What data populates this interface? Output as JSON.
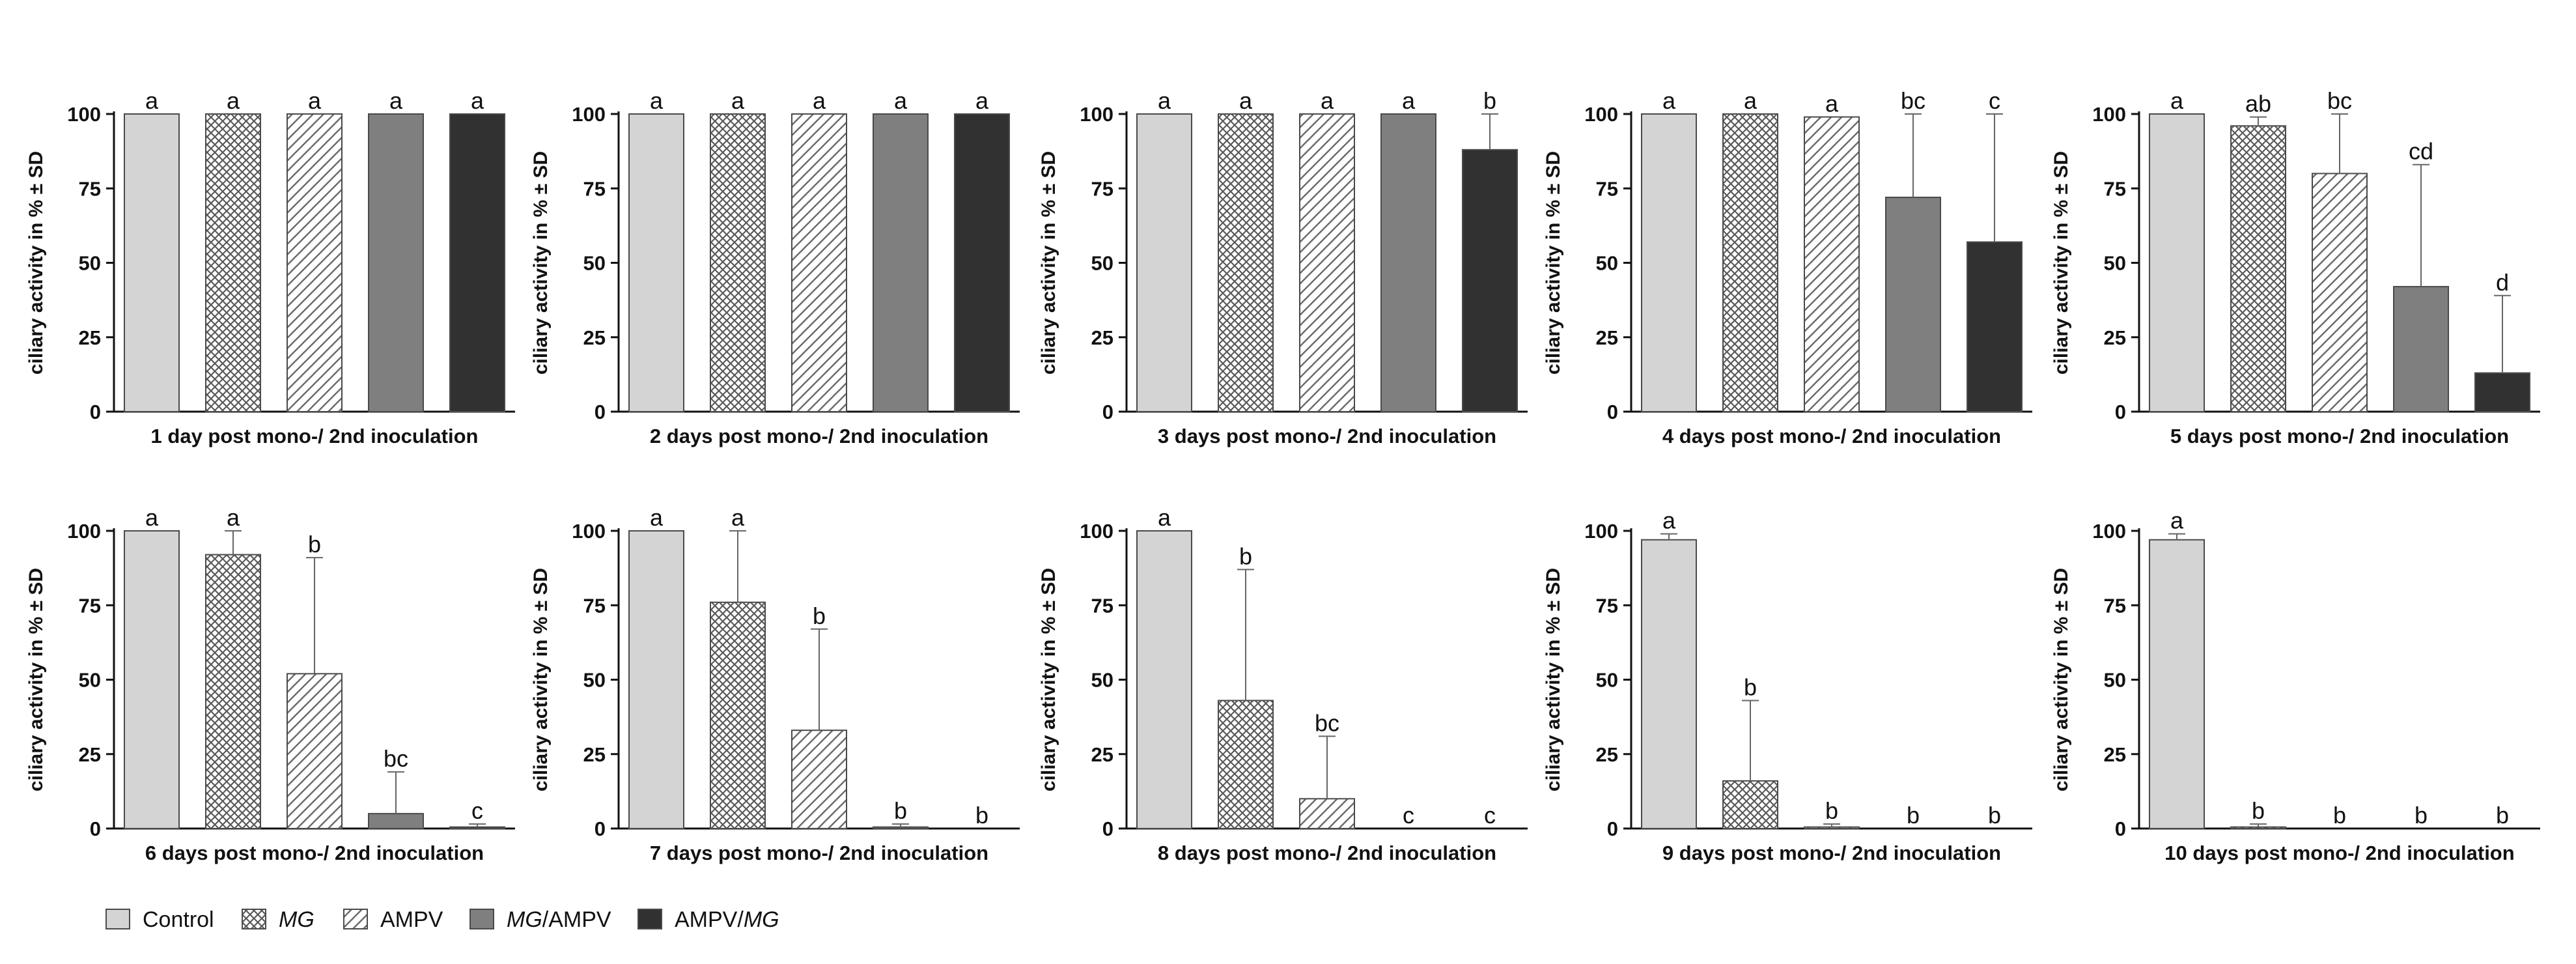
{
  "chart_data": {
    "type": "bar",
    "y_axis": {
      "label": "ciliary activity in % ± SD",
      "ylim": [
        0,
        100
      ],
      "ticks": [
        "0",
        "25",
        "50",
        "75",
        "100"
      ]
    },
    "groups": [
      {
        "name": "Control",
        "name_parts": [
          {
            "t": "Control",
            "i": false
          }
        ],
        "color": "#d4d4d4",
        "pattern": "solid"
      },
      {
        "name": "MG",
        "name_parts": [
          {
            "t": "MG",
            "i": true
          }
        ],
        "color": "#ffffff",
        "pattern": "checker"
      },
      {
        "name": "AMPV",
        "name_parts": [
          {
            "t": "AMPV",
            "i": false
          }
        ],
        "color": "#ffffff",
        "pattern": "hatch"
      },
      {
        "name": "MG/AMPV",
        "name_parts": [
          {
            "t": "MG",
            "i": true
          },
          {
            "t": "/AMPV",
            "i": false
          }
        ],
        "color": "#7f7f7f",
        "pattern": "solid"
      },
      {
        "name": "AMPV/MG",
        "name_parts": [
          {
            "t": "AMPV/",
            "i": false
          },
          {
            "t": "MG",
            "i": true
          }
        ],
        "color": "#313131",
        "pattern": "solid"
      }
    ],
    "panels": [
      {
        "xlabel": "1 day post mono-/ 2nd inoculation",
        "values": [
          100,
          100,
          100,
          100,
          100
        ],
        "sd": [
          0,
          0,
          0,
          0,
          0
        ],
        "letters": [
          "a",
          "a",
          "a",
          "a",
          "a"
        ]
      },
      {
        "xlabel": "2 days post mono-/ 2nd inoculation",
        "values": [
          100,
          100,
          100,
          100,
          100
        ],
        "sd": [
          0,
          0,
          0,
          0,
          0
        ],
        "letters": [
          "a",
          "a",
          "a",
          "a",
          "a"
        ]
      },
      {
        "xlabel": "3 days post mono-/ 2nd inoculation",
        "values": [
          100,
          100,
          100,
          100,
          88
        ],
        "sd": [
          0,
          0,
          0,
          0,
          12
        ],
        "letters": [
          "a",
          "a",
          "a",
          "a",
          "b"
        ]
      },
      {
        "xlabel": "4 days post mono-/ 2nd inoculation",
        "values": [
          100,
          100,
          99,
          72,
          57
        ],
        "sd": [
          0,
          0,
          0,
          28,
          43
        ],
        "letters": [
          "a",
          "a",
          "a",
          "bc",
          "c"
        ]
      },
      {
        "xlabel": "5 days post mono-/ 2nd inoculation",
        "values": [
          100,
          96,
          80,
          42,
          13
        ],
        "sd": [
          0,
          3,
          20,
          41,
          26
        ],
        "letters": [
          "a",
          "ab",
          "bc",
          "cd",
          "d"
        ]
      },
      {
        "xlabel": "6 days post mono-/ 2nd inoculation",
        "values": [
          100,
          92,
          52,
          5,
          0.5
        ],
        "sd": [
          0,
          8,
          39,
          14,
          1
        ],
        "letters": [
          "a",
          "a",
          "b",
          "bc",
          "c"
        ]
      },
      {
        "xlabel": "7 days post mono-/ 2nd inoculation",
        "values": [
          100,
          76,
          33,
          0.5,
          0
        ],
        "sd": [
          0,
          24,
          34,
          1,
          0
        ],
        "letters": [
          "a",
          "a",
          "b",
          "b",
          "b"
        ]
      },
      {
        "xlabel": "8 days post mono-/ 2nd inoculation",
        "values": [
          100,
          43,
          10,
          0,
          0
        ],
        "sd": [
          0,
          44,
          21,
          0,
          0
        ],
        "letters": [
          "a",
          "b",
          "bc",
          "c",
          "c"
        ]
      },
      {
        "xlabel": "9 days post mono-/ 2nd inoculation",
        "values": [
          97,
          16,
          0.5,
          0,
          0
        ],
        "sd": [
          2,
          27,
          1,
          0,
          0
        ],
        "letters": [
          "a",
          "b",
          "b",
          "b",
          "b"
        ]
      },
      {
        "xlabel": "10 days post mono-/ 2nd inoculation",
        "values": [
          97,
          0.5,
          0,
          0,
          0
        ],
        "sd": [
          2,
          1,
          0,
          0,
          0
        ],
        "letters": [
          "a",
          "b",
          "b",
          "b",
          "b"
        ]
      }
    ]
  }
}
